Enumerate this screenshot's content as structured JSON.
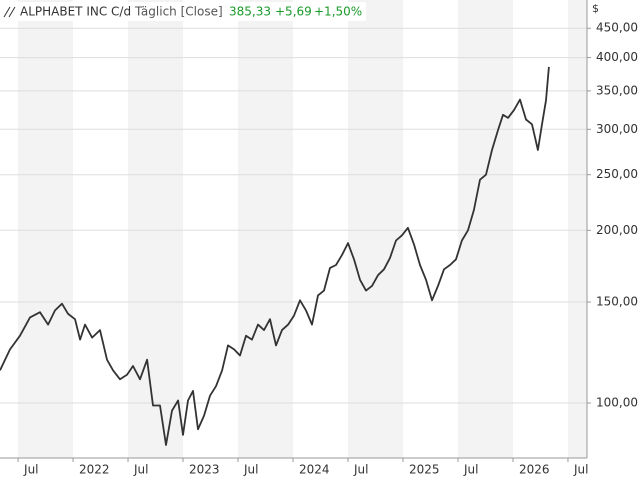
{
  "header": {
    "name": "ALPHABET INC C/d",
    "mode": "Täglich [Close]",
    "price": "385,33",
    "change": "+5,69",
    "change_pct": "+1,50%"
  },
  "chart_data": {
    "type": "line",
    "currency": "$",
    "x": [
      2021.336,
      2021.427,
      2021.518,
      2021.609,
      2021.7,
      2021.773,
      2021.836,
      2021.9,
      2021.955,
      2022.018,
      2022.064,
      2022.109,
      2022.173,
      2022.245,
      2022.309,
      2022.364,
      2022.427,
      2022.491,
      2022.545,
      2022.609,
      2022.673,
      2022.727,
      2022.791,
      2022.845,
      2022.9,
      2022.955,
      2023.0,
      2023.045,
      2023.091,
      2023.136,
      2023.191,
      2023.245,
      2023.3,
      2023.355,
      2023.409,
      2023.464,
      2023.518,
      2023.573,
      2023.627,
      2023.682,
      2023.736,
      2023.791,
      2023.845,
      2023.9,
      2023.955,
      2024.009,
      2024.064,
      2024.118,
      2024.173,
      2024.227,
      2024.282,
      2024.336,
      2024.391,
      2024.445,
      2024.5,
      2024.555,
      2024.609,
      2024.664,
      2024.718,
      2024.773,
      2024.827,
      2024.882,
      2024.936,
      2024.991,
      2025.045,
      2025.1,
      2025.155,
      2025.209,
      2025.264,
      2025.318,
      2025.373,
      2025.427,
      2025.482,
      2025.536,
      2025.591,
      2025.645,
      2025.7,
      2025.755,
      2025.809,
      2025.864,
      2025.909,
      2025.955,
      2026.009,
      2026.064,
      2026.118,
      2026.173,
      2026.227,
      2026.264,
      2026.3,
      2026.327
    ],
    "series": [
      {
        "name": "ALPHABET INC C/d",
        "color": "#333333",
        "values": [
          114,
          124,
          131,
          141,
          144,
          137,
          145,
          149,
          143,
          140,
          129,
          137,
          130,
          134,
          119,
          114,
          110,
          112,
          116,
          110,
          119,
          99,
          99,
          84.5,
          97,
          101,
          88,
          101,
          105,
          90,
          95,
          103,
          107,
          114,
          126,
          124,
          121,
          131,
          129,
          137,
          134,
          140,
          126,
          134,
          137,
          142,
          151,
          145,
          137,
          154,
          157,
          172,
          174,
          181,
          190,
          178,
          164,
          157,
          160,
          167,
          171,
          179,
          192,
          196,
          202,
          189,
          174,
          164,
          151,
          160,
          171,
          174,
          178,
          192,
          200,
          217,
          245,
          250,
          276,
          299,
          318,
          314,
          324,
          338,
          312,
          306,
          276,
          306,
          337,
          385.33
        ]
      }
    ],
    "xlim": [
      2021.336,
      2026.673
    ],
    "xticks": [
      {
        "value": 2021.5,
        "label": "Jul"
      },
      {
        "value": 2022,
        "label": "2022"
      },
      {
        "value": 2022.5,
        "label": "Jul"
      },
      {
        "value": 2023,
        "label": "2023"
      },
      {
        "value": 2023.5,
        "label": "Jul"
      },
      {
        "value": 2024,
        "label": "2024"
      },
      {
        "value": 2024.5,
        "label": "Jul"
      },
      {
        "value": 2025,
        "label": "2025"
      },
      {
        "value": 2025.5,
        "label": "Jul"
      },
      {
        "value": 2026,
        "label": "2026"
      },
      {
        "value": 2026.5,
        "label": "Jul"
      }
    ],
    "ylim": [
      80.2,
      504
    ],
    "log_scale": true,
    "grid": true,
    "yticks": [
      {
        "value": 100,
        "label": "100,00"
      },
      {
        "value": 150,
        "label": "150,00"
      },
      {
        "value": 200,
        "label": "200,00"
      },
      {
        "value": 250,
        "label": "250,00"
      },
      {
        "value": 300,
        "label": "300,00"
      },
      {
        "value": 350,
        "label": "350,00"
      },
      {
        "value": 400,
        "label": "400,00"
      },
      {
        "value": 450,
        "label": "450,00"
      }
    ]
  }
}
